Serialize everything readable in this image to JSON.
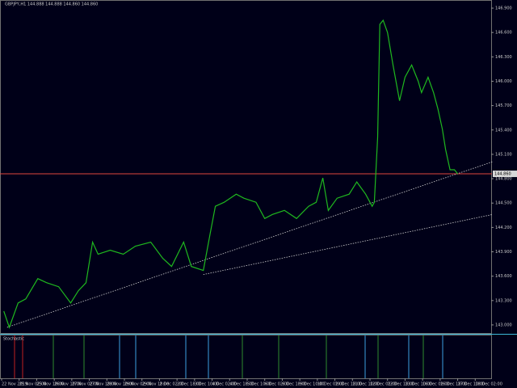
{
  "chart_data": {
    "type": "line",
    "title": "GBPJPY,H1 144.888 144.888 144.860 144.860",
    "indicator_name": "Stochastic",
    "xlim": [
      0,
      448
    ],
    "ylim": [
      142.9,
      147.0
    ],
    "xticks": [
      {
        "value": 0,
        "label": "22 Nov 2019"
      },
      {
        "value": 16,
        "label": "25 Nov 02:00"
      },
      {
        "value": 32,
        "label": "25 Nov 18:00"
      },
      {
        "value": 48,
        "label": "26 Nov 10:00"
      },
      {
        "value": 64,
        "label": "27 Nov 02:00"
      },
      {
        "value": 80,
        "label": "27 Nov 18:00"
      },
      {
        "value": 96,
        "label": "28 Nov 10:00"
      },
      {
        "value": 112,
        "label": "29 Nov 02:00"
      },
      {
        "value": 128,
        "label": "29 Nov 18:00"
      },
      {
        "value": 144,
        "label": "2 Dec 02:00"
      },
      {
        "value": 160,
        "label": "2 Dec 18:00"
      },
      {
        "value": 176,
        "label": "3 Dec 10:00"
      },
      {
        "value": 192,
        "label": "4 Dec 02:00"
      },
      {
        "value": 208,
        "label": "4 Dec 18:00"
      },
      {
        "value": 224,
        "label": "5 Dec 10:00"
      },
      {
        "value": 240,
        "label": "6 Dec 02:00"
      },
      {
        "value": 256,
        "label": "6 Dec 18:00"
      },
      {
        "value": 272,
        "label": "9 Dec 10:00"
      },
      {
        "value": 288,
        "label": "10 Dec 02:00"
      },
      {
        "value": 304,
        "label": "10 Dec 18:00"
      },
      {
        "value": 320,
        "label": "11 Dec 10:00"
      },
      {
        "value": 336,
        "label": "12 Dec 02:00"
      },
      {
        "value": 352,
        "label": "12 Dec 18:00"
      },
      {
        "value": 368,
        "label": "13 Dec 10:00"
      },
      {
        "value": 384,
        "label": "16 Dec 02:00"
      },
      {
        "value": 400,
        "label": "16 Dec 18:00"
      },
      {
        "value": 416,
        "label": "17 Dec 10:00"
      },
      {
        "value": 432,
        "label": "18 Dec 02:00"
      }
    ],
    "yticks": [
      {
        "value": 143.0,
        "label": "143.000"
      },
      {
        "value": 143.3,
        "label": "143.300"
      },
      {
        "value": 143.6,
        "label": "143.600"
      },
      {
        "value": 143.9,
        "label": "143.900"
      },
      {
        "value": 144.2,
        "label": "144.200"
      },
      {
        "value": 144.5,
        "label": "144.500"
      },
      {
        "value": 144.8,
        "label": "144.800"
      },
      {
        "value": 145.1,
        "label": "145.100"
      },
      {
        "value": 145.4,
        "label": "145.400"
      },
      {
        "value": 145.7,
        "label": "145.700"
      },
      {
        "value": 146.0,
        "label": "146.000"
      },
      {
        "value": 146.3,
        "label": "146.300"
      },
      {
        "value": 146.6,
        "label": "146.600"
      },
      {
        "value": 146.9,
        "label": "146.900"
      }
    ],
    "current_price": {
      "value": 144.86,
      "label": "144.860"
    },
    "series": [
      {
        "name": "GBPJPY,H1",
        "color": "#1fb81f",
        "x": [
          2,
          7,
          15,
          22,
          33,
          41,
          52,
          63,
          70,
          77,
          83,
          88,
          99,
          111,
          122,
          136,
          147,
          155,
          166,
          173,
          184,
          190,
          195,
          203,
          214,
          221,
          232,
          240,
          247,
          258,
          269,
          280,
          287,
          293,
          298,
          306,
          317,
          324,
          332,
          338,
          340,
          343,
          345,
          348,
          352,
          357,
          363,
          368,
          374,
          380,
          383,
          389,
          394,
          398,
          402,
          405,
          409,
          413,
          416
        ],
        "values": [
          143.17,
          142.97,
          143.27,
          143.32,
          143.57,
          143.52,
          143.47,
          143.27,
          143.42,
          143.52,
          144.02,
          143.87,
          143.92,
          143.87,
          143.97,
          144.02,
          143.82,
          143.72,
          144.02,
          143.72,
          143.67,
          144.11,
          144.46,
          144.51,
          144.61,
          144.56,
          144.51,
          144.31,
          144.36,
          144.41,
          144.31,
          144.46,
          144.51,
          144.81,
          144.41,
          144.56,
          144.61,
          144.76,
          144.61,
          144.46,
          144.51,
          145.31,
          146.7,
          146.75,
          146.6,
          146.2,
          145.76,
          146.05,
          146.2,
          146.0,
          145.86,
          146.05,
          145.86,
          145.66,
          145.41,
          145.16,
          144.91,
          144.91,
          144.86
        ]
      }
    ],
    "trendlines": [
      {
        "x": [
          5,
          448
        ],
        "values": [
          142.97,
          145.01
        ]
      },
      {
        "x": [
          184,
          448
        ],
        "values": [
          143.62,
          144.36
        ]
      }
    ]
  }
}
